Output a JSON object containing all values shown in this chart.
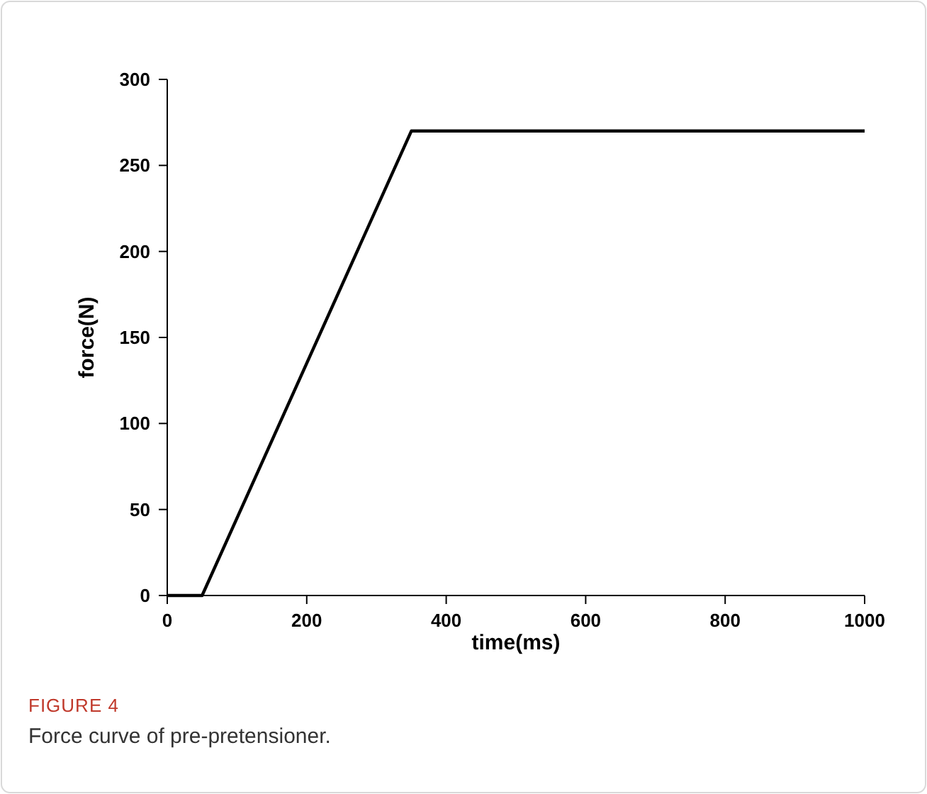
{
  "chart_data": {
    "type": "line",
    "xlabel": "time(ms)",
    "ylabel": "force(N)",
    "x": [
      0,
      50,
      350,
      1000
    ],
    "series": [
      {
        "color": "#000000",
        "values": [
          0,
          0,
          270,
          270
        ]
      }
    ],
    "xlim": [
      0,
      1000
    ],
    "xticks": [
      0,
      200,
      400,
      600,
      800,
      1000
    ],
    "ylim": [
      0,
      300
    ],
    "yticks": [
      0,
      50,
      100,
      150,
      200,
      250,
      300
    ],
    "grid": false,
    "marker": "none",
    "line_style": "solid",
    "annotations": [
      "FIGURE 4",
      "Force curve of pre-pretensioner."
    ]
  }
}
